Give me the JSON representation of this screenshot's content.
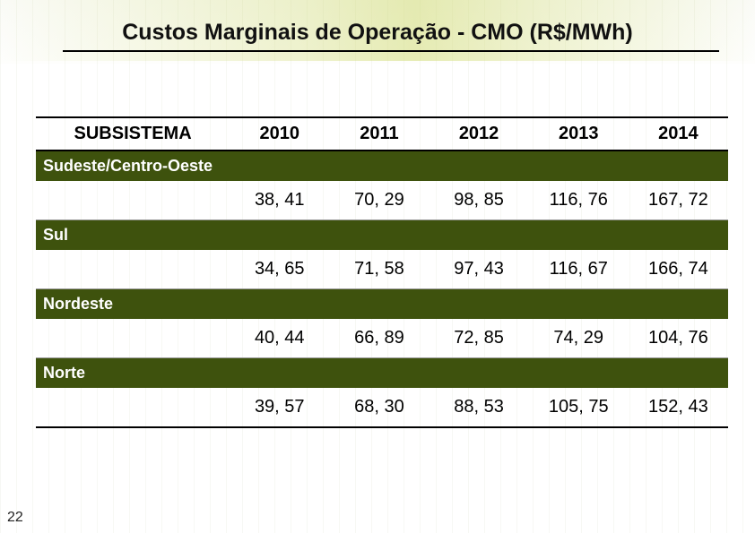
{
  "page": {
    "title": "Custos Marginais de Operação - CMO (R$/MWh)",
    "number": "22"
  },
  "table": {
    "type": "table",
    "background_color": "#ffffff",
    "region_bg": "#3e520d",
    "region_text_color": "#ffffff",
    "border_color": "#000000",
    "row_divider_color": "#999999",
    "header_fontsize": 20,
    "cell_fontsize": 20,
    "region_fontsize": 18,
    "columns": [
      {
        "key": "subsistema",
        "label": "SUBSISTEMA",
        "align": "center",
        "width_pct": 28
      },
      {
        "key": "y2010",
        "label": "2010",
        "align": "center",
        "width_pct": 14.4
      },
      {
        "key": "y2011",
        "label": "2011",
        "align": "center",
        "width_pct": 14.4
      },
      {
        "key": "y2012",
        "label": "2012",
        "align": "center",
        "width_pct": 14.4
      },
      {
        "key": "y2013",
        "label": "2013",
        "align": "center",
        "width_pct": 14.4
      },
      {
        "key": "y2014",
        "label": "2014",
        "align": "center",
        "width_pct": 14.4
      }
    ],
    "regions": [
      {
        "name": "Sudeste/Centro-Oeste",
        "values": {
          "y2010": "38, 41",
          "y2011": "70, 29",
          "y2012": "98, 85",
          "y2013": "116, 76",
          "y2014": "167, 72"
        }
      },
      {
        "name": "Sul",
        "values": {
          "y2010": "34, 65",
          "y2011": "71, 58",
          "y2012": "97, 43",
          "y2013": "116, 67",
          "y2014": "166, 74"
        }
      },
      {
        "name": "Nordeste",
        "values": {
          "y2010": "40, 44",
          "y2011": "66, 89",
          "y2012": "72, 85",
          "y2013": "74, 29",
          "y2014": "104, 76"
        }
      },
      {
        "name": "Norte",
        "values": {
          "y2010": "39, 57",
          "y2011": "68, 30",
          "y2012": "88, 53",
          "y2013": "105, 75",
          "y2014": "152, 43"
        }
      }
    ]
  }
}
